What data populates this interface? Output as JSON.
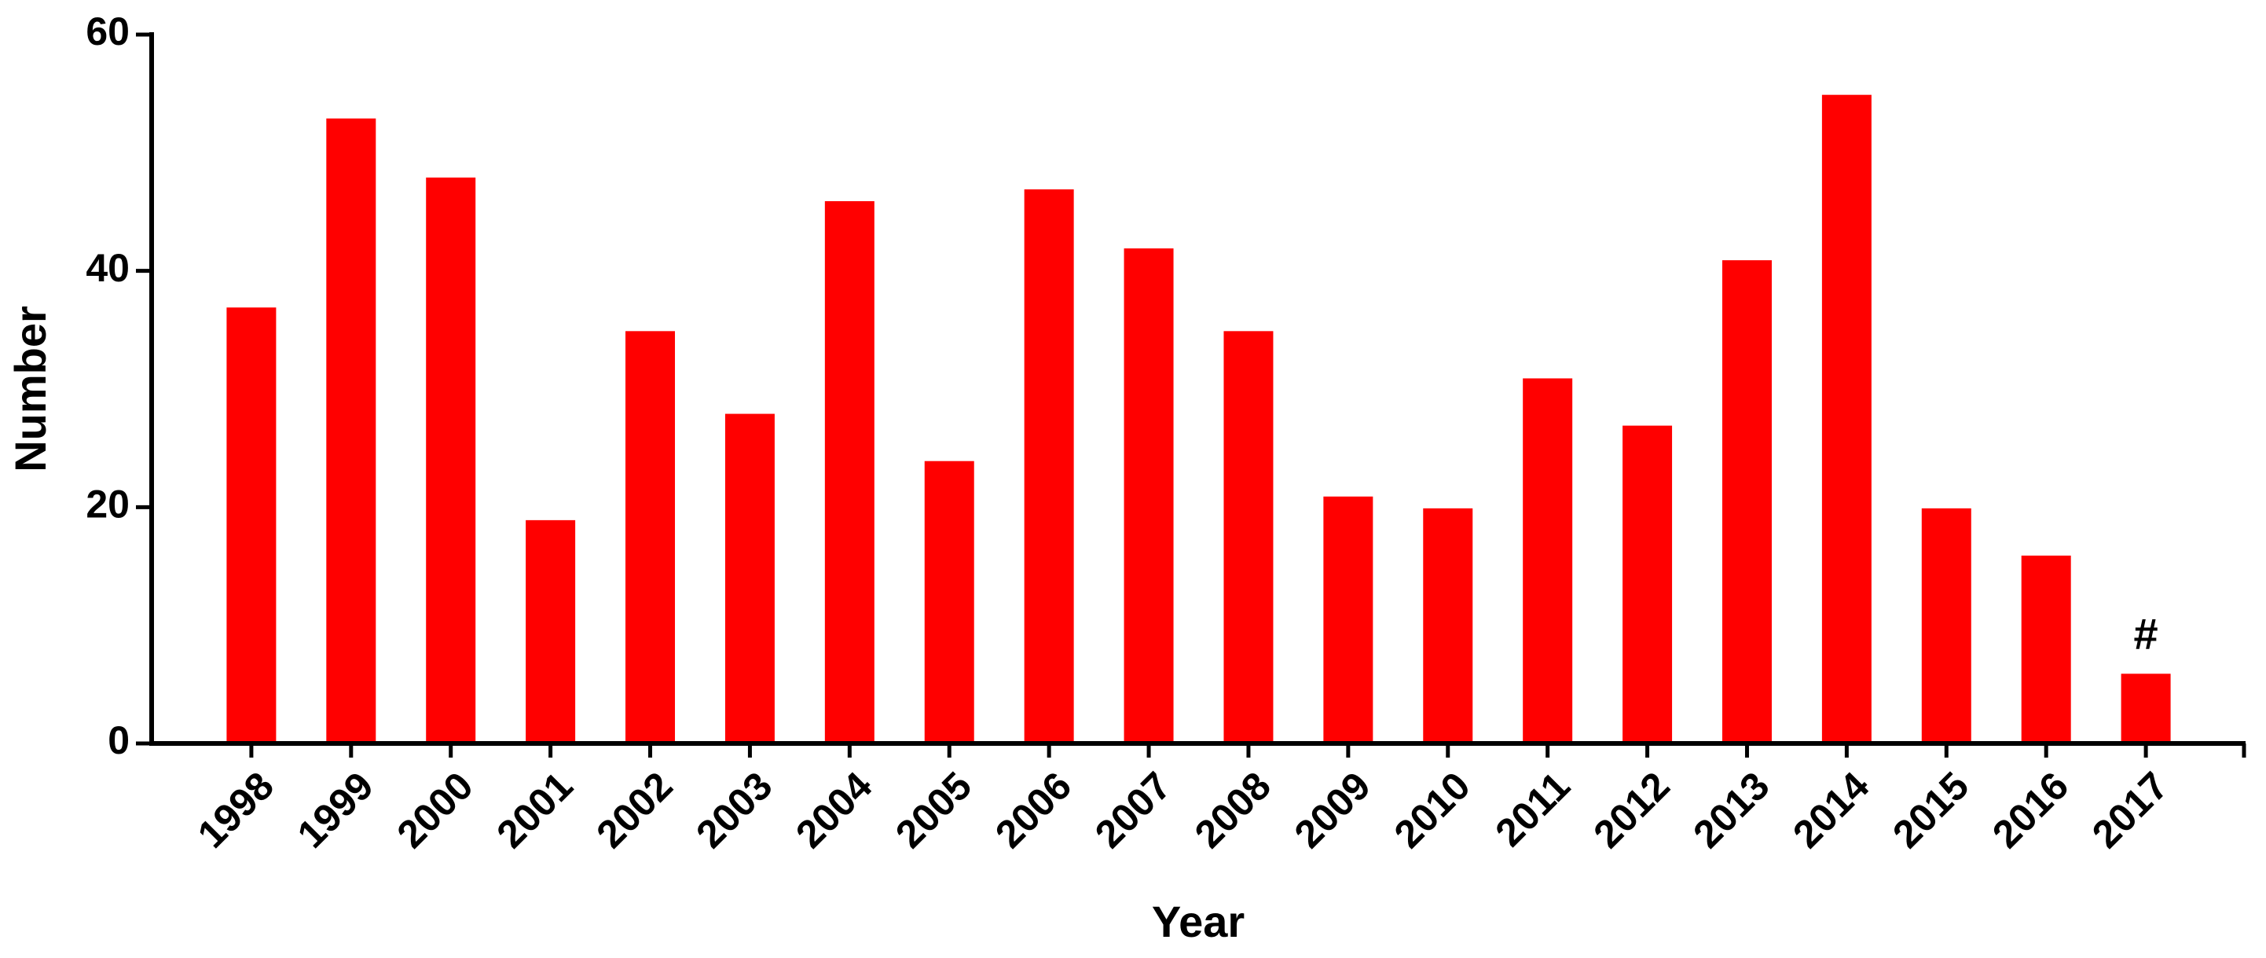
{
  "chart_data": {
    "type": "bar",
    "x_label": "Year",
    "y_label": "Number",
    "categories": [
      "1998",
      "1999",
      "2000",
      "2001",
      "2002",
      "2003",
      "2004",
      "2005",
      "2006",
      "2007",
      "2008",
      "2009",
      "2010",
      "2011",
      "2012",
      "2013",
      "2014",
      "2015",
      "2016",
      "2017"
    ],
    "values": [
      37,
      53,
      48,
      19,
      35,
      28,
      46,
      24,
      47,
      42,
      35,
      21,
      20,
      31,
      27,
      41,
      55,
      20,
      16,
      6
    ],
    "color": "#ff0000",
    "ylim": [
      0,
      60
    ],
    "yticks": [
      0,
      20,
      40,
      60
    ],
    "grid": false,
    "annotations": [
      {
        "text": "#",
        "x": "2017"
      }
    ]
  }
}
